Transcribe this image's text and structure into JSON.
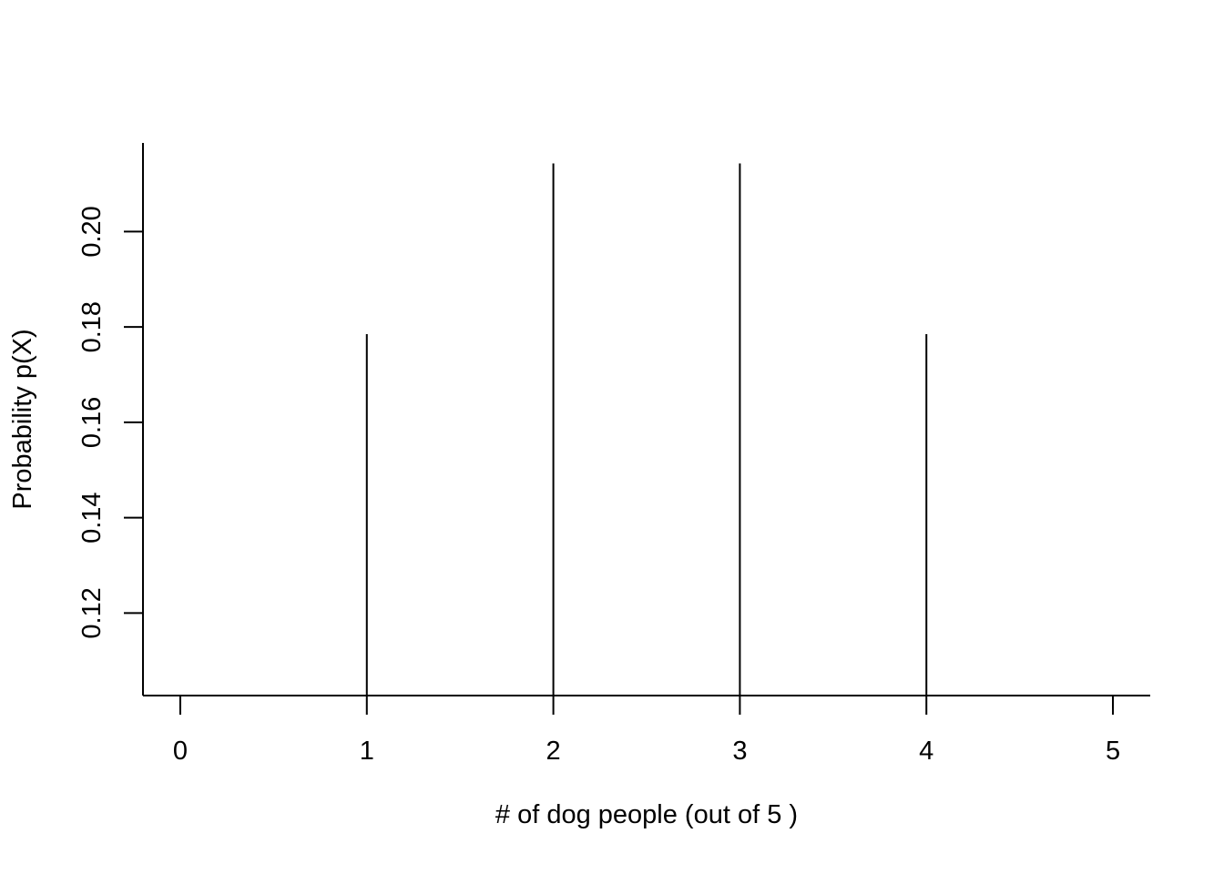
{
  "chart_data": {
    "type": "bar",
    "subtype": "probability-stem",
    "title": "",
    "xlabel": "# of dog people (out of  5 )",
    "ylabel": "Probability p(X)",
    "x": [
      0,
      1,
      2,
      3,
      4,
      5
    ],
    "values": [
      0.1,
      0.1785,
      0.2143,
      0.2143,
      0.1785,
      0.1
    ],
    "xticks": [
      0,
      1,
      2,
      3,
      4,
      5
    ],
    "xtick_labels": [
      "0",
      "1",
      "2",
      "3",
      "4",
      "5"
    ],
    "yticks": [
      0.12,
      0.14,
      0.16,
      0.18,
      0.2
    ],
    "ytick_labels": [
      "0.12",
      "0.14",
      "0.16",
      "0.18",
      "0.20"
    ],
    "xlim": [
      -0.2,
      5.2
    ],
    "ylim": [
      0.1027,
      0.2186
    ],
    "grid": false,
    "legend": "none",
    "colors": {
      "line": "#000000",
      "background": "#ffffff"
    }
  }
}
